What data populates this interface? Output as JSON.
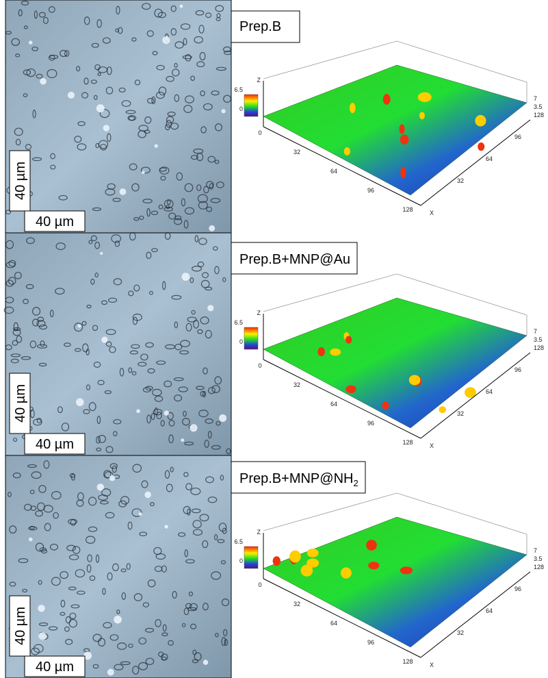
{
  "panels": [
    {
      "title": {
        "text": "Prep.B"
      },
      "scale_vertical": "40 µm",
      "scale_horizontal": "40 µm",
      "plot": {
        "z_axis": "Z",
        "x_axis": "X",
        "colorbar_ticks": [
          6.5,
          0
        ],
        "z_ticks": [
          7,
          3.5
        ],
        "y_end": 128,
        "x_ticks": [
          0,
          32,
          64,
          96,
          128
        ],
        "y_ticks": [
          96,
          64,
          32
        ]
      }
    },
    {
      "title": {
        "text": "Prep.B+MNP@Au"
      },
      "scale_vertical": "40 µm",
      "scale_horizontal": "40 µm",
      "plot": {
        "z_axis": "Z",
        "x_axis": "X",
        "colorbar_ticks": [
          6.5,
          0
        ],
        "z_ticks": [
          7,
          3.5
        ],
        "y_end": 128,
        "x_ticks": [
          0,
          32,
          64,
          96,
          128
        ],
        "y_ticks": [
          96,
          64,
          32
        ]
      }
    },
    {
      "title": {
        "text": "Prep.B+MNP@NH",
        "sub": "2"
      },
      "scale_vertical": "40 µm",
      "scale_horizontal": "40 µm",
      "plot": {
        "z_axis": "Z",
        "x_axis": "X",
        "colorbar_ticks": [
          6.5,
          0
        ],
        "z_ticks": [
          7,
          3.5
        ],
        "y_end": 128,
        "x_ticks": [
          0,
          32,
          64,
          96,
          128
        ],
        "y_ticks": [
          96,
          64,
          32
        ]
      }
    }
  ]
}
